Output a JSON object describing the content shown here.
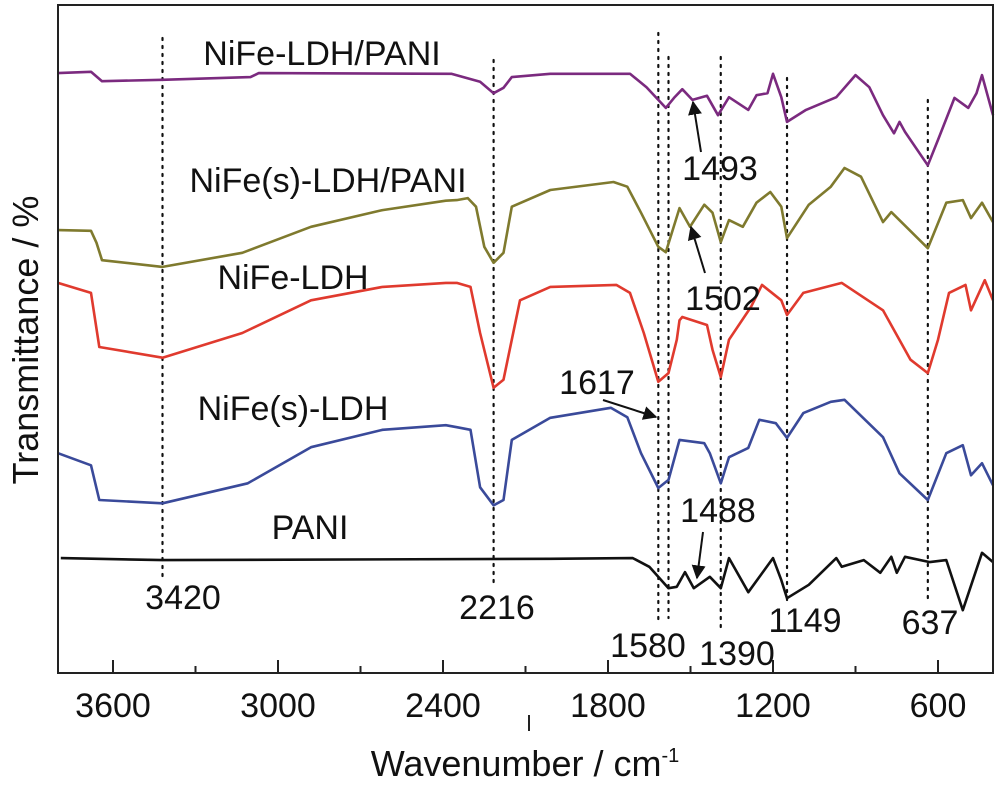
{
  "chart_data": {
    "type": "line",
    "title": "",
    "xlabel": "Wavenumber / cm",
    "xlabel_superscript": "-1",
    "ylabel": "Transmittance / %",
    "xlim": [
      3800,
      400
    ],
    "ylim": [
      0,
      100
    ],
    "x_reversed": true,
    "grid": false,
    "y_units_note": "arbitrary, vertically offset spectra",
    "x_ticks": [
      3600,
      3000,
      2400,
      1800,
      1200,
      600
    ],
    "x_tick_labels": [
      "3600",
      "3000",
      "2400",
      "1800",
      "1200",
      "600"
    ],
    "x_minor_ticks": [
      3300,
      2700,
      2100,
      1500,
      900
    ],
    "series": [
      {
        "name": "NiFe-LDH/PANI",
        "color": "#7b2a7f",
        "points": [
          [
            3800,
            89.8
          ],
          [
            3680,
            90.0
          ],
          [
            3640,
            88.6
          ],
          [
            3420,
            88.8
          ],
          [
            3100,
            89.2
          ],
          [
            3070,
            89.8
          ],
          [
            2370,
            89.7
          ],
          [
            2265,
            88.5
          ],
          [
            2216,
            86.8
          ],
          [
            2180,
            87.6
          ],
          [
            2150,
            89.2
          ],
          [
            2010,
            89.7
          ],
          [
            1720,
            89.7
          ],
          [
            1660,
            87.7
          ],
          [
            1590,
            84.6
          ],
          [
            1560,
            86.1
          ],
          [
            1530,
            87.4
          ],
          [
            1493,
            85.8
          ],
          [
            1440,
            86.4
          ],
          [
            1400,
            83.5
          ],
          [
            1360,
            86.2
          ],
          [
            1290,
            84.3
          ],
          [
            1260,
            86.5
          ],
          [
            1220,
            86.8
          ],
          [
            1200,
            89.7
          ],
          [
            1170,
            86.2
          ],
          [
            1149,
            82.5
          ],
          [
            1080,
            84.3
          ],
          [
            970,
            86.2
          ],
          [
            900,
            89.5
          ],
          [
            850,
            87.7
          ],
          [
            800,
            83.5
          ],
          [
            760,
            80.8
          ],
          [
            740,
            82.5
          ],
          [
            720,
            81.0
          ],
          [
            637,
            76.0
          ],
          [
            600,
            79.8
          ],
          [
            540,
            86.1
          ],
          [
            490,
            84.6
          ],
          [
            460,
            86.8
          ],
          [
            440,
            89.5
          ],
          [
            400,
            83.5
          ]
        ]
      },
      {
        "name": "NiFe(s)-LDH/PANI",
        "color": "#7f7a2e",
        "points": [
          [
            3800,
            66.3
          ],
          [
            3680,
            66.2
          ],
          [
            3660,
            64.4
          ],
          [
            3640,
            61.8
          ],
          [
            3420,
            60.8
          ],
          [
            3130,
            62.9
          ],
          [
            2880,
            66.8
          ],
          [
            2620,
            69.3
          ],
          [
            2390,
            70.7
          ],
          [
            2350,
            70.8
          ],
          [
            2310,
            71.1
          ],
          [
            2280,
            69.8
          ],
          [
            2250,
            63.8
          ],
          [
            2216,
            61.4
          ],
          [
            2180,
            62.9
          ],
          [
            2150,
            69.8
          ],
          [
            2010,
            72.3
          ],
          [
            1780,
            73.5
          ],
          [
            1730,
            72.8
          ],
          [
            1680,
            68.9
          ],
          [
            1617,
            63.8
          ],
          [
            1590,
            63.0
          ],
          [
            1540,
            69.6
          ],
          [
            1502,
            66.8
          ],
          [
            1450,
            70.1
          ],
          [
            1420,
            68.9
          ],
          [
            1390,
            64.5
          ],
          [
            1360,
            67.8
          ],
          [
            1310,
            66.8
          ],
          [
            1260,
            70.4
          ],
          [
            1210,
            72.0
          ],
          [
            1170,
            69.8
          ],
          [
            1149,
            65.1
          ],
          [
            1070,
            70.1
          ],
          [
            990,
            72.8
          ],
          [
            940,
            75.6
          ],
          [
            880,
            74.3
          ],
          [
            800,
            67.5
          ],
          [
            770,
            69.0
          ],
          [
            637,
            63.6
          ],
          [
            570,
            70.4
          ],
          [
            510,
            70.8
          ],
          [
            480,
            68.1
          ],
          [
            440,
            70.4
          ],
          [
            400,
            67.5
          ]
        ]
      },
      {
        "name": "NiFe-LDH",
        "color": "#e03a2e",
        "points": [
          [
            3800,
            58.4
          ],
          [
            3680,
            56.9
          ],
          [
            3650,
            48.8
          ],
          [
            3420,
            47.2
          ],
          [
            3130,
            50.9
          ],
          [
            2880,
            55.8
          ],
          [
            2620,
            57.8
          ],
          [
            2390,
            58.4
          ],
          [
            2350,
            58.4
          ],
          [
            2300,
            57.8
          ],
          [
            2265,
            50.9
          ],
          [
            2216,
            42.7
          ],
          [
            2180,
            43.9
          ],
          [
            2150,
            49.9
          ],
          [
            2120,
            55.8
          ],
          [
            2010,
            57.8
          ],
          [
            1770,
            58.1
          ],
          [
            1720,
            56.9
          ],
          [
            1670,
            50.9
          ],
          [
            1617,
            43.6
          ],
          [
            1580,
            44.9
          ],
          [
            1550,
            49.9
          ],
          [
            1540,
            52.8
          ],
          [
            1530,
            53.3
          ],
          [
            1440,
            52.1
          ],
          [
            1420,
            48.4
          ],
          [
            1390,
            44.3
          ],
          [
            1360,
            49.9
          ],
          [
            1280,
            54.8
          ],
          [
            1240,
            58.1
          ],
          [
            1170,
            55.8
          ],
          [
            1149,
            53.6
          ],
          [
            1090,
            56.9
          ],
          [
            950,
            58.4
          ],
          [
            800,
            54.3
          ],
          [
            700,
            46.9
          ],
          [
            637,
            44.9
          ],
          [
            600,
            49.9
          ],
          [
            560,
            56.9
          ],
          [
            500,
            58.1
          ],
          [
            480,
            54.3
          ],
          [
            430,
            58.8
          ],
          [
            400,
            55.8
          ]
        ]
      },
      {
        "name": "NiFe(s)-LDH",
        "color": "#3a4a9a",
        "points": [
          [
            3800,
            32.9
          ],
          [
            3680,
            31.1
          ],
          [
            3650,
            25.9
          ],
          [
            3420,
            25.4
          ],
          [
            3110,
            28.4
          ],
          [
            2880,
            33.8
          ],
          [
            2620,
            36.4
          ],
          [
            2390,
            37.1
          ],
          [
            2350,
            36.8
          ],
          [
            2300,
            36.4
          ],
          [
            2265,
            27.8
          ],
          [
            2216,
            25.1
          ],
          [
            2180,
            25.9
          ],
          [
            2150,
            34.9
          ],
          [
            2010,
            38.2
          ],
          [
            1790,
            39.7
          ],
          [
            1730,
            38.3
          ],
          [
            1680,
            32.9
          ],
          [
            1617,
            27.7
          ],
          [
            1580,
            28.9
          ],
          [
            1540,
            34.9
          ],
          [
            1450,
            34.4
          ],
          [
            1430,
            32.9
          ],
          [
            1390,
            28.4
          ],
          [
            1360,
            32.3
          ],
          [
            1290,
            33.7
          ],
          [
            1250,
            37.9
          ],
          [
            1190,
            37.4
          ],
          [
            1149,
            35.2
          ],
          [
            1090,
            38.9
          ],
          [
            990,
            40.6
          ],
          [
            940,
            40.9
          ],
          [
            800,
            35.3
          ],
          [
            740,
            29.9
          ],
          [
            637,
            25.9
          ],
          [
            570,
            32.9
          ],
          [
            510,
            34.1
          ],
          [
            480,
            29.6
          ],
          [
            440,
            31.4
          ],
          [
            400,
            28.1
          ]
        ]
      },
      {
        "name": "PANI",
        "color": "#111111",
        "points": [
          [
            3790,
            17.2
          ],
          [
            3420,
            16.9
          ],
          [
            2010,
            17.1
          ],
          [
            1710,
            17.2
          ],
          [
            1650,
            15.9
          ],
          [
            1580,
            12.7
          ],
          [
            1550,
            12.9
          ],
          [
            1520,
            15.1
          ],
          [
            1488,
            12.7
          ],
          [
            1430,
            14.4
          ],
          [
            1390,
            12.7
          ],
          [
            1360,
            17.2
          ],
          [
            1290,
            12.1
          ],
          [
            1200,
            17.2
          ],
          [
            1170,
            13.9
          ],
          [
            1149,
            11.2
          ],
          [
            1070,
            13.2
          ],
          [
            970,
            17.2
          ],
          [
            950,
            15.9
          ],
          [
            870,
            16.9
          ],
          [
            810,
            15.0
          ],
          [
            770,
            17.4
          ],
          [
            750,
            15.0
          ],
          [
            720,
            17.4
          ],
          [
            630,
            16.6
          ],
          [
            570,
            16.9
          ],
          [
            510,
            9.4
          ],
          [
            440,
            18.0
          ],
          [
            400,
            16.6
          ]
        ]
      }
    ],
    "series_labels": [
      "NiFe-LDH/PANI",
      "NiFe(s)-LDH/PANI",
      "NiFe-LDH",
      "NiFe(s)-LDH",
      "PANI"
    ],
    "reference_lines": [
      3420,
      2216,
      1617,
      1580,
      1390,
      1149,
      637
    ],
    "annotations": [
      {
        "text": "3420",
        "x": 3420
      },
      {
        "text": "2216",
        "x": 2216
      },
      {
        "text": "1580",
        "x": 1580
      },
      {
        "text": "1390",
        "x": 1390
      },
      {
        "text": "1149",
        "x": 1149
      },
      {
        "text": "637",
        "x": 637
      },
      {
        "text": "1617",
        "x": 1617,
        "arrow": true
      },
      {
        "text": "1488",
        "x": 1488,
        "arrow": true
      },
      {
        "text": "1493",
        "x": 1493,
        "arrow": true
      },
      {
        "text": "1502",
        "x": 1502,
        "arrow": true
      }
    ]
  }
}
